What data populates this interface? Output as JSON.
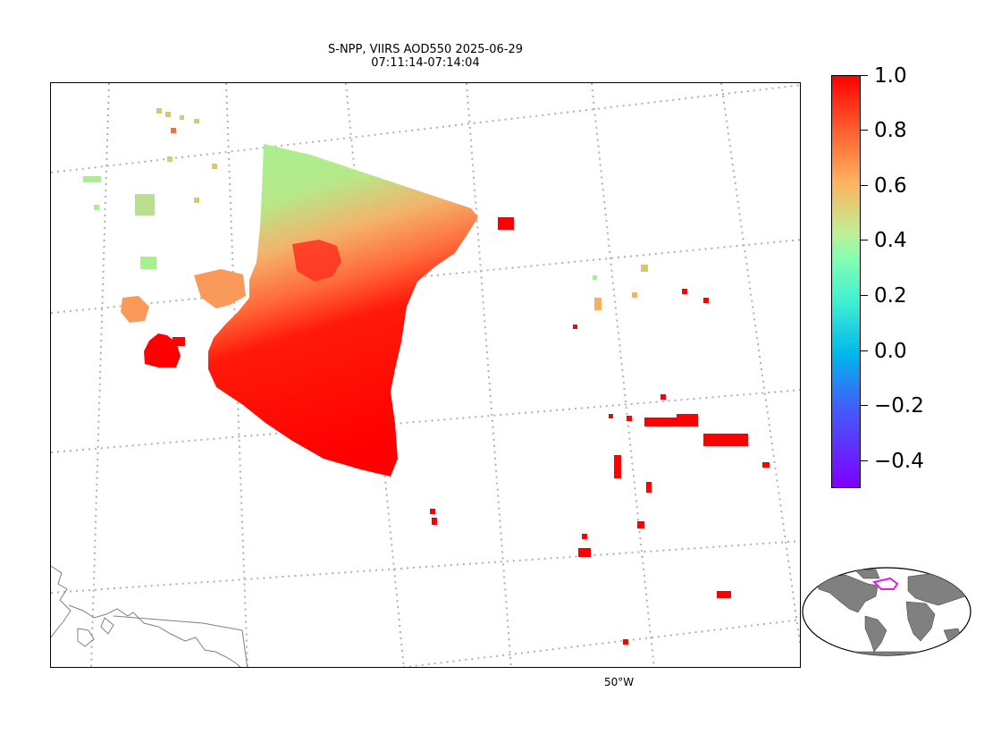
{
  "title_line1": "S-NPP, VIIRS AOD550 2025-06-29",
  "title_line2": "07:11:14-07:14:04",
  "lon_label": "50°W",
  "colorbar": {
    "colormap": "rainbow",
    "vmin": -0.5,
    "vmax": 1.0,
    "ticks": [
      "1.0",
      "0.8",
      "0.6",
      "0.4",
      "0.2",
      "0.0",
      "−0.2",
      "−0.4"
    ]
  },
  "colors": {
    "high_aod": "#ff0000",
    "mid_aod": "#f99a5a",
    "low_aod": "#a6f08e",
    "gridline": "#b0b0b0",
    "coastline": "#808080",
    "land_inset": "#808080",
    "region_box": "#e020e0"
  }
}
